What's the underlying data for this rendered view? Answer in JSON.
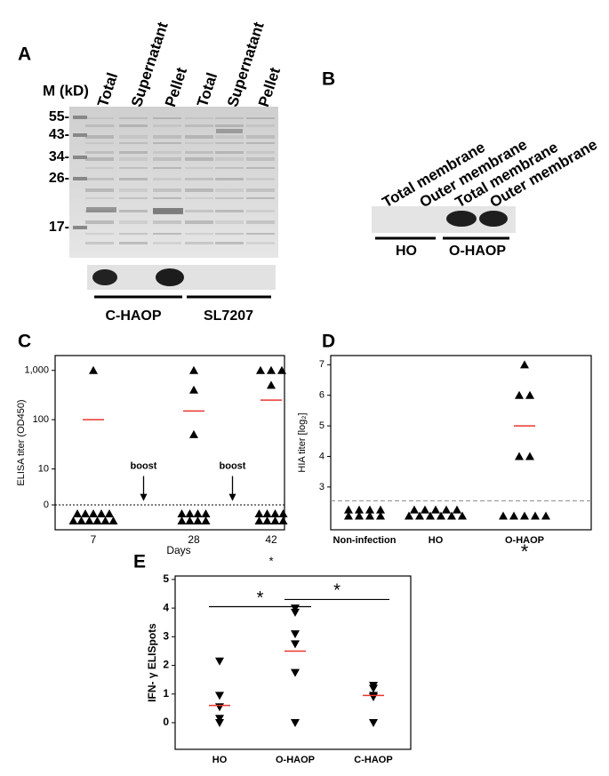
{
  "gel_panels": [
    {
      "label": "A",
      "marker_title": "M (kD)",
      "markers": [
        "55-",
        "43-",
        "34-",
        "26-",
        "17-"
      ],
      "lanes": [
        "Total",
        "Supernatant",
        "Pellet",
        "Total",
        "Supernatant",
        "Pellet"
      ],
      "groups": [
        "C-HAOP",
        "SL7207"
      ]
    },
    {
      "label": "B",
      "lanes": [
        "Total membrane",
        "Outer membrane",
        "Total membrane",
        "Outer membrane"
      ],
      "groups": [
        "HO",
        "O-HAOP"
      ]
    }
  ],
  "chart_data": [
    {
      "type": "scatter",
      "panel_label": "C",
      "ylabel": "ELISA titer (OD450)",
      "xlabel": "Days",
      "categories": [
        "7",
        "28",
        "42"
      ],
      "x_notes": [
        null,
        null,
        "*"
      ],
      "yscale": "log",
      "ylim": [
        0,
        2000
      ],
      "yticks": [
        0,
        10,
        100,
        {
          "value": 1000,
          "label": "1,000"
        }
      ],
      "threshold": 0,
      "marker": "triangle-up",
      "color": "#000000",
      "mean_color": "#e8372d",
      "points": [
        [
          1000,
          0,
          0,
          0,
          0,
          0,
          0,
          0,
          0,
          0,
          0,
          0
        ],
        [
          1000,
          400,
          50,
          0,
          0,
          0,
          0,
          0,
          0,
          0,
          0
        ],
        [
          1000,
          1000,
          1000,
          500,
          0,
          0,
          0,
          0,
          0,
          0,
          0,
          0
        ]
      ],
      "means": [
        100,
        150,
        250
      ],
      "annotations": [
        "boost",
        "boost"
      ]
    },
    {
      "type": "scatter",
      "panel_label": "D",
      "ylabel": "HIA titer [log₂]",
      "categories": [
        "Non-infection",
        "HO",
        "O-HAOP"
      ],
      "x_notes": [
        null,
        null,
        "*"
      ],
      "ylim": [
        1.6,
        7.3
      ],
      "yticks": [
        3,
        4,
        5,
        6,
        7
      ],
      "threshold": 2.55,
      "marker": "triangle-up",
      "color": "#000000",
      "mean_color": "#e8372d",
      "points": [
        [
          2.25,
          2.25,
          2.25,
          2.25,
          2.05,
          2.05,
          2.05,
          2.05
        ],
        [
          2.25,
          2.25,
          2.25,
          2.25,
          2.25,
          2.05,
          2.05,
          2.05,
          2.05,
          2.05,
          2.05
        ],
        [
          7.0,
          6.0,
          6.0,
          4.0,
          4.0,
          2.05,
          2.05,
          2.05,
          2.05,
          2.05
        ]
      ],
      "means": [
        null,
        null,
        5.0
      ]
    },
    {
      "type": "scatter",
      "panel_label": "E",
      "ylabel": "IFN- γ ELISpots",
      "categories": [
        "HO",
        "O-HAOP",
        "C-HAOP"
      ],
      "ylim": [
        -0.93,
        5.12
      ],
      "yticks": [
        0,
        1,
        2,
        3,
        4,
        5
      ],
      "marker": "triangle-down",
      "color": "#000000",
      "mean_color": "#e8372d",
      "points": [
        [
          2.15,
          0.95,
          0.55,
          0.15,
          0
        ],
        [
          4.0,
          3.85,
          3.1,
          2.75,
          1.75,
          0
        ],
        [
          1.3,
          1.2,
          0.95,
          0.9,
          0
        ]
      ],
      "means": [
        0.6,
        2.5,
        0.95
      ],
      "brackets": [
        {
          "from": "HO",
          "to": "O-HAOP",
          "y": 4.05,
          "text": "*"
        },
        {
          "from": "O-HAOP",
          "to": "C-HAOP",
          "y": 4.3,
          "text": "*"
        }
      ]
    }
  ]
}
